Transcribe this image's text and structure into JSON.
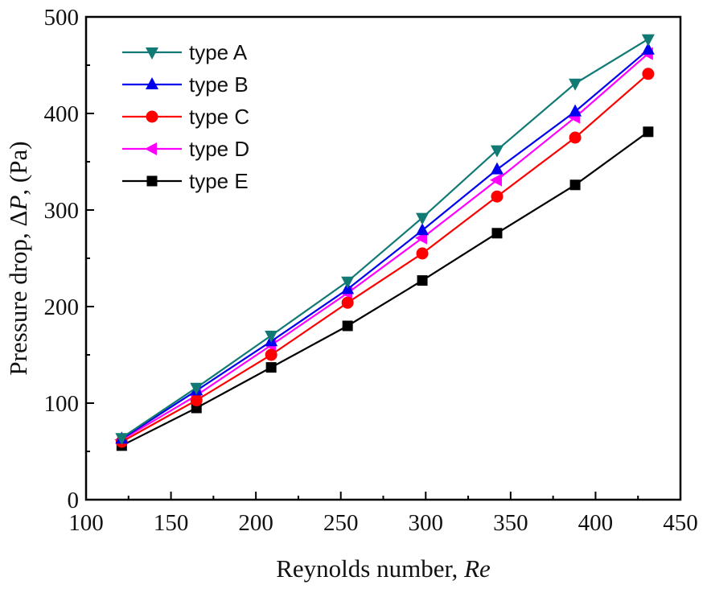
{
  "chart_data": {
    "type": "line",
    "title": "",
    "xlabel": "Reynolds number, ",
    "xlabel_italic": "Re",
    "ylabel_prefix": "Pressure drop, Δ",
    "ylabel_italic": "P",
    "ylabel_suffix": ", (Pa)",
    "xlim": [
      100,
      450
    ],
    "ylim": [
      0,
      500
    ],
    "xticks": [
      100,
      150,
      200,
      250,
      300,
      350,
      400,
      450
    ],
    "yticks": [
      0,
      100,
      200,
      300,
      400,
      500
    ],
    "grid": false,
    "legend_position": "top-left",
    "x": [
      121,
      165,
      209,
      254,
      298,
      342,
      388,
      431
    ],
    "series": [
      {
        "name": "type A",
        "color": "#117a74",
        "marker": "triangle-down",
        "values": [
          64,
          116,
          170,
          226,
          292,
          362,
          431,
          477
        ]
      },
      {
        "name": "type B",
        "color": "#0000ee",
        "marker": "triangle-up",
        "values": [
          63,
          113,
          164,
          218,
          279,
          342,
          402,
          466
        ]
      },
      {
        "name": "type C",
        "color": "#ff0000",
        "marker": "circle",
        "values": [
          60,
          103,
          150,
          204,
          255,
          314,
          375,
          441
        ]
      },
      {
        "name": "type D",
        "color": "#ff00ff",
        "marker": "triangle-left",
        "values": [
          62,
          108,
          160,
          214,
          271,
          331,
          396,
          462
        ]
      },
      {
        "name": "type E",
        "color": "#000000",
        "marker": "square",
        "values": [
          56,
          95,
          137,
          180,
          227,
          276,
          326,
          381
        ]
      }
    ]
  }
}
